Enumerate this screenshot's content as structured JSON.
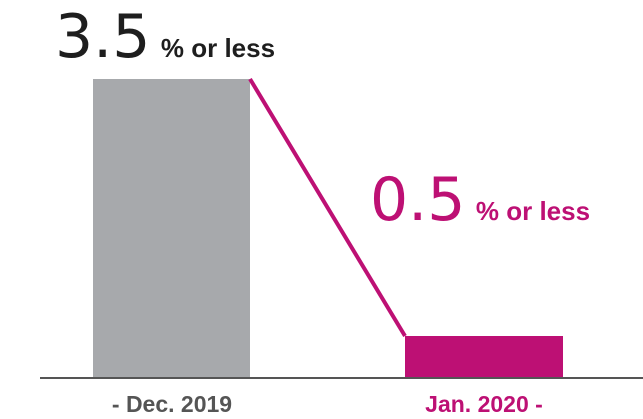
{
  "chart_data": {
    "type": "bar",
    "categories": [
      "Dec. 2019",
      "Jan. 2020"
    ],
    "values": [
      3.5,
      0.5
    ],
    "value_labels": [
      {
        "number": "3.5",
        "suffix": "% or less"
      },
      {
        "number": "0.5",
        "suffix": "% or less"
      }
    ],
    "category_labels": [
      "- Dec. 2019",
      "Jan. 2020 -"
    ],
    "ylim": [
      0,
      3.5
    ],
    "connector_line": true,
    "grid": false,
    "colors": {
      "bar_1": "#A7A9AC",
      "bar_2": "#BD1074",
      "label_1": "#1E1E1E",
      "label_2": "#BD1074",
      "category_1": "#555555",
      "category_2": "#BD1074",
      "axis": "#555555",
      "connector": "#BD1074"
    }
  }
}
